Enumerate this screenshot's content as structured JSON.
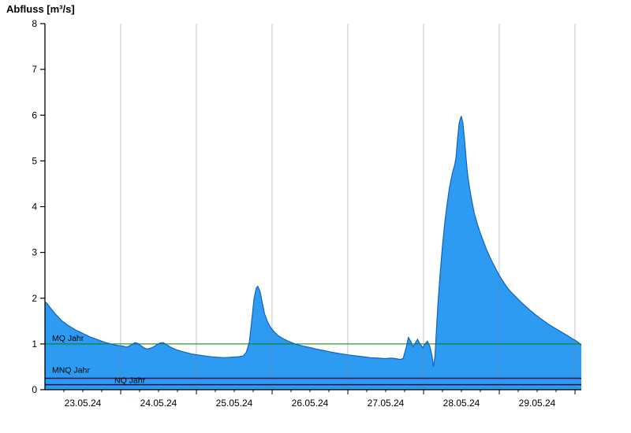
{
  "title": "Abfluss [m³/s]",
  "chart_data": {
    "type": "area",
    "title": "Abfluss [m³/s]",
    "series_name": "Abfluss",
    "x_range_days": [
      0,
      7.083
    ],
    "ylim": [
      0,
      8
    ],
    "yticks": [
      "0",
      "1",
      "2",
      "3",
      "4",
      "5",
      "6",
      "7",
      "8"
    ],
    "xtick_labels": [
      "23.05.24",
      "24.05.24",
      "25.05.24",
      "26.05.24",
      "27.05.24",
      "28.05.24",
      "29.05.24"
    ],
    "grid": "vertical-day-lines",
    "legend_position": "none",
    "reference_lines": [
      {
        "label": "MQ Jahr",
        "value": 1.0,
        "color": "#008000",
        "width": 1.0,
        "label_offset_x": 9,
        "label_offset_y": -4
      },
      {
        "label": "MNQ Jahr",
        "value": 0.25,
        "color": "#14144e",
        "width": 1.5,
        "label_offset_x": 9,
        "label_offset_y": -7
      },
      {
        "label": "NQ Jahr",
        "value": 0.11,
        "color": "#14144e",
        "width": 1.5,
        "label_offset_x": 88,
        "label_offset_y": -2
      }
    ],
    "colors": {
      "fill": "#2e9bf2",
      "stroke": "#1362c0",
      "axis": "#000000",
      "grid": "#6f7f96",
      "text": "#000000",
      "background": "#ffffff"
    },
    "points": [
      [
        0.0,
        1.92
      ],
      [
        0.03,
        1.88
      ],
      [
        0.06,
        1.81
      ],
      [
        0.1,
        1.73
      ],
      [
        0.14,
        1.65
      ],
      [
        0.18,
        1.58
      ],
      [
        0.22,
        1.51
      ],
      [
        0.26,
        1.46
      ],
      [
        0.3,
        1.41
      ],
      [
        0.35,
        1.36
      ],
      [
        0.4,
        1.31
      ],
      [
        0.45,
        1.27
      ],
      [
        0.5,
        1.23
      ],
      [
        0.55,
        1.19
      ],
      [
        0.6,
        1.15
      ],
      [
        0.65,
        1.12
      ],
      [
        0.7,
        1.09
      ],
      [
        0.75,
        1.06
      ],
      [
        0.8,
        1.03
      ],
      [
        0.85,
        1.01
      ],
      [
        0.9,
        0.99
      ],
      [
        0.95,
        0.97
      ],
      [
        1.0,
        0.96
      ],
      [
        1.04,
        0.95
      ],
      [
        1.08,
        0.93
      ],
      [
        1.12,
        0.96
      ],
      [
        1.16,
        1.0
      ],
      [
        1.19,
        1.03
      ],
      [
        1.23,
        1.01
      ],
      [
        1.27,
        0.96
      ],
      [
        1.31,
        0.91
      ],
      [
        1.35,
        0.89
      ],
      [
        1.4,
        0.91
      ],
      [
        1.44,
        0.94
      ],
      [
        1.48,
        0.99
      ],
      [
        1.52,
        1.02
      ],
      [
        1.56,
        1.03
      ],
      [
        1.6,
        0.99
      ],
      [
        1.64,
        0.95
      ],
      [
        1.68,
        0.91
      ],
      [
        1.74,
        0.87
      ],
      [
        1.8,
        0.84
      ],
      [
        1.87,
        0.81
      ],
      [
        1.94,
        0.78
      ],
      [
        2.02,
        0.76
      ],
      [
        2.1,
        0.74
      ],
      [
        2.18,
        0.72
      ],
      [
        2.27,
        0.71
      ],
      [
        2.36,
        0.7
      ],
      [
        2.46,
        0.71
      ],
      [
        2.56,
        0.72
      ],
      [
        2.62,
        0.74
      ],
      [
        2.66,
        0.82
      ],
      [
        2.7,
        1.05
      ],
      [
        2.73,
        1.5
      ],
      [
        2.76,
        1.98
      ],
      [
        2.79,
        2.22
      ],
      [
        2.81,
        2.26
      ],
      [
        2.84,
        2.15
      ],
      [
        2.87,
        1.9
      ],
      [
        2.9,
        1.66
      ],
      [
        2.94,
        1.48
      ],
      [
        2.98,
        1.36
      ],
      [
        3.03,
        1.26
      ],
      [
        3.08,
        1.18
      ],
      [
        3.14,
        1.12
      ],
      [
        3.2,
        1.07
      ],
      [
        3.27,
        1.02
      ],
      [
        3.34,
        0.98
      ],
      [
        3.42,
        0.95
      ],
      [
        3.5,
        0.92
      ],
      [
        3.58,
        0.89
      ],
      [
        3.67,
        0.86
      ],
      [
        3.76,
        0.83
      ],
      [
        3.85,
        0.8
      ],
      [
        3.93,
        0.78
      ],
      [
        4.01,
        0.76
      ],
      [
        4.1,
        0.74
      ],
      [
        4.2,
        0.72
      ],
      [
        4.3,
        0.7
      ],
      [
        4.4,
        0.69
      ],
      [
        4.5,
        0.68
      ],
      [
        4.57,
        0.69
      ],
      [
        4.63,
        0.68
      ],
      [
        4.69,
        0.66
      ],
      [
        4.73,
        0.68
      ],
      [
        4.77,
        0.92
      ],
      [
        4.8,
        1.14
      ],
      [
        4.83,
        1.06
      ],
      [
        4.86,
        0.94
      ],
      [
        4.89,
        1.02
      ],
      [
        4.92,
        1.1
      ],
      [
        4.95,
        1.01
      ],
      [
        4.99,
        0.92
      ],
      [
        5.02,
        1.0
      ],
      [
        5.05,
        1.06
      ],
      [
        5.08,
        0.96
      ],
      [
        5.11,
        0.76
      ],
      [
        5.13,
        0.5
      ],
      [
        5.15,
        0.72
      ],
      [
        5.17,
        1.3
      ],
      [
        5.19,
        1.9
      ],
      [
        5.22,
        2.55
      ],
      [
        5.25,
        3.15
      ],
      [
        5.28,
        3.65
      ],
      [
        5.31,
        4.05
      ],
      [
        5.34,
        4.4
      ],
      [
        5.37,
        4.65
      ],
      [
        5.39,
        4.8
      ],
      [
        5.41,
        4.9
      ],
      [
        5.43,
        5.1
      ],
      [
        5.45,
        5.5
      ],
      [
        5.47,
        5.82
      ],
      [
        5.49,
        5.95
      ],
      [
        5.5,
        5.97
      ],
      [
        5.52,
        5.82
      ],
      [
        5.54,
        5.48
      ],
      [
        5.56,
        5.08
      ],
      [
        5.58,
        4.72
      ],
      [
        5.61,
        4.38
      ],
      [
        5.64,
        4.1
      ],
      [
        5.67,
        3.86
      ],
      [
        5.71,
        3.62
      ],
      [
        5.75,
        3.42
      ],
      [
        5.79,
        3.24
      ],
      [
        5.83,
        3.07
      ],
      [
        5.87,
        2.92
      ],
      [
        5.91,
        2.78
      ],
      [
        5.96,
        2.62
      ],
      [
        6.01,
        2.47
      ],
      [
        6.06,
        2.34
      ],
      [
        6.11,
        2.22
      ],
      [
        6.17,
        2.11
      ],
      [
        6.23,
        2.01
      ],
      [
        6.29,
        1.91
      ],
      [
        6.35,
        1.82
      ],
      [
        6.41,
        1.73
      ],
      [
        6.47,
        1.65
      ],
      [
        6.53,
        1.57
      ],
      [
        6.59,
        1.5
      ],
      [
        6.65,
        1.43
      ],
      [
        6.71,
        1.37
      ],
      [
        6.77,
        1.31
      ],
      [
        6.83,
        1.25
      ],
      [
        6.89,
        1.19
      ],
      [
        6.95,
        1.13
      ],
      [
        7.0,
        1.08
      ],
      [
        7.04,
        1.04
      ],
      [
        7.083,
        0.97
      ]
    ]
  }
}
